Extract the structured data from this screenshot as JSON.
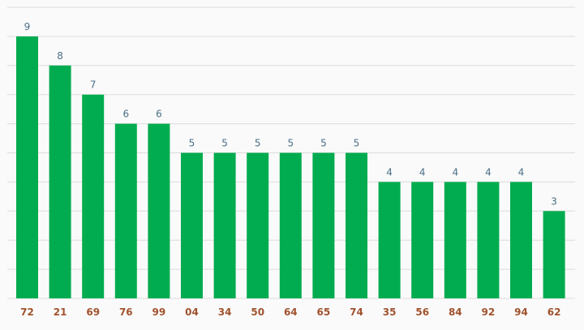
{
  "chart_data": {
    "type": "bar",
    "categories": [
      "72",
      "21",
      "69",
      "76",
      "99",
      "04",
      "34",
      "50",
      "64",
      "65",
      "74",
      "35",
      "56",
      "84",
      "92",
      "94",
      "62"
    ],
    "values": [
      9,
      8,
      7,
      6,
      6,
      5,
      5,
      5,
      5,
      5,
      5,
      4,
      4,
      4,
      4,
      4,
      3
    ],
    "ylim": [
      0,
      10
    ],
    "grid": true,
    "legend": "none",
    "colors": {
      "bar": "#00ac4f",
      "grid": "#dcdcdc",
      "value_label": "#4a6f86",
      "category_label": "#a0522d",
      "background": "#fafafa"
    }
  }
}
